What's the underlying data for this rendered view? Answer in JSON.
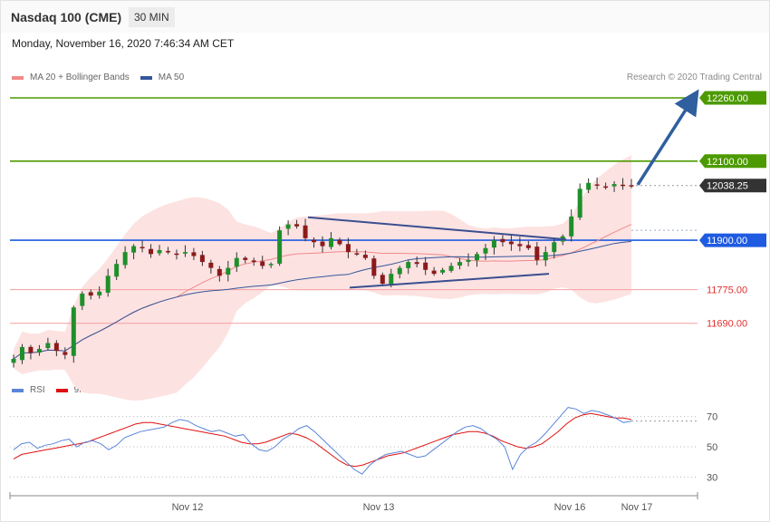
{
  "header": {
    "title": "Nasdaq 100 (CME)",
    "timeframe": "30 MIN"
  },
  "datetime": "Monday, November 16, 2020 7:46:34 AM CET",
  "legend": {
    "items": [
      {
        "label": "MA 20 + Bollinger Bands",
        "color": "#f08a8a"
      },
      {
        "label": "MA 50",
        "color": "#34579a"
      }
    ],
    "credit": "Research © 2020 Trading Central"
  },
  "rsi_legend": {
    "items": [
      {
        "label": "RSI",
        "color": "#5b86d8"
      },
      {
        "label": "9MA",
        "color": "#e01010"
      }
    ]
  },
  "chart_data": [
    {
      "type": "candlestick",
      "x_ticks": [
        "Nov 12",
        "Nov 13",
        "Nov 16",
        "Nov 17"
      ],
      "levels": [
        {
          "value": "12260.00",
          "price": 12260,
          "color": "#4c9a00",
          "style": "badge"
        },
        {
          "value": "12100.00",
          "price": 12100,
          "color": "#4c9a00",
          "style": "badge"
        },
        {
          "value": "12038.25",
          "price": 12038.25,
          "color": "#333333",
          "style": "badge"
        },
        {
          "value": "11900.00",
          "price": 11900,
          "color": "#1f5be0",
          "style": "badge"
        },
        {
          "value": "11775.00",
          "price": 11775,
          "color": "#e03030",
          "style": "text"
        },
        {
          "value": "11690.00",
          "price": 11690,
          "color": "#e03030",
          "style": "text"
        }
      ],
      "ylim": [
        11580,
        12265
      ],
      "close_path": [
        11600,
        11630,
        11615,
        11625,
        11640,
        11620,
        11610,
        11730,
        11765,
        11760,
        11770,
        11810,
        11840,
        11870,
        11885,
        11880,
        11865,
        11875,
        11870,
        11865,
        11870,
        11860,
        11845,
        11830,
        11810,
        11830,
        11855,
        11850,
        11845,
        11835,
        11840,
        11925,
        11940,
        11935,
        11905,
        11895,
        11885,
        11905,
        11890,
        11870,
        11865,
        11855,
        11810,
        11790,
        11815,
        11830,
        11845,
        11840,
        11825,
        11815,
        11825,
        11835,
        11845,
        11850,
        11865,
        11880,
        11900,
        11895,
        11890,
        11885,
        11880,
        11850,
        11870,
        11895,
        11910,
        11960,
        12030,
        12045,
        12040,
        12035,
        12042,
        12040,
        12038
      ],
      "indicators": [
        "MA 20 + Bollinger Bands",
        "MA 50"
      ],
      "trendlines": "symmetrical triangle (upper falling line, lower rising line)",
      "projection": "arrow up to 12260.00"
    },
    {
      "type": "line",
      "name": "RSI",
      "y_ticks": [
        "70",
        "50",
        "30"
      ],
      "ylim": [
        20,
        80
      ],
      "rsi": [
        48,
        52,
        53,
        49,
        51,
        52,
        54,
        55,
        50,
        53,
        54,
        52,
        48,
        51,
        56,
        58,
        60,
        61,
        62,
        63,
        66,
        68,
        67,
        64,
        62,
        60,
        61,
        59,
        57,
        58,
        52,
        48,
        47,
        50,
        55,
        58,
        62,
        64,
        60,
        55,
        50,
        45,
        40,
        35,
        32,
        38,
        42,
        45,
        46,
        47,
        45,
        43,
        44,
        48,
        52,
        56,
        60,
        63,
        64,
        62,
        58,
        55,
        50,
        35,
        45,
        50,
        53,
        58,
        64,
        70,
        76,
        75,
        72,
        74,
        73,
        71,
        69,
        66,
        67
      ],
      "ma9": [
        42,
        45,
        46,
        47,
        48,
        49,
        50,
        51,
        52,
        53,
        55,
        57,
        59,
        61,
        63,
        65,
        66,
        66,
        65,
        64,
        63,
        62,
        61,
        60,
        59,
        58,
        57,
        55,
        53,
        52,
        52,
        53,
        55,
        57,
        59,
        58,
        56,
        53,
        49,
        45,
        41,
        38,
        37,
        38,
        40,
        42,
        44,
        45,
        46,
        48,
        50,
        52,
        54,
        56,
        58,
        59,
        60,
        60,
        59,
        57,
        54,
        52,
        50,
        49,
        50,
        52,
        56,
        60,
        65,
        69,
        71,
        72,
        71,
        70,
        69,
        69,
        68
      ]
    }
  ]
}
